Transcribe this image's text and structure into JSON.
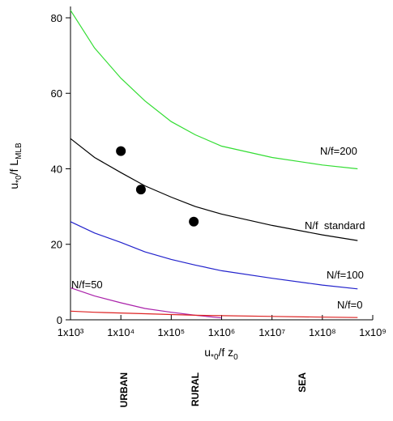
{
  "chart_data": {
    "type": "line",
    "x_log": true,
    "xlim": [
      1000,
      1000000000
    ],
    "ylim": [
      0,
      83
    ],
    "xticks": [
      {
        "value": 1000,
        "label": "1x10³"
      },
      {
        "value": 10000,
        "label": "1x10⁴"
      },
      {
        "value": 100000,
        "label": "1x10⁵"
      },
      {
        "value": 1000000,
        "label": "1x10⁶"
      },
      {
        "value": 10000000,
        "label": "1x10⁷"
      },
      {
        "value": 100000000,
        "label": "1x10⁸"
      },
      {
        "value": 1000000000,
        "label": "1x10⁹"
      }
    ],
    "yticks": [
      0,
      20,
      40,
      60,
      80
    ],
    "xlabel": [
      "u",
      "*0",
      "/f z",
      "0"
    ],
    "ylabel": [
      "u",
      "*0",
      "/f L",
      "MLB"
    ],
    "x": [
      1000,
      3000,
      10000,
      30000,
      100000,
      300000,
      1000000,
      10000000,
      100000000,
      500000000
    ],
    "series": [
      {
        "name": "N/f=200",
        "color": "#33dd33",
        "values": [
          82,
          72,
          64,
          58,
          52.5,
          49,
          46,
          43,
          41,
          40
        ]
      },
      {
        "name": "N/f  standard",
        "color": "#000000",
        "values": [
          48,
          43,
          39,
          35.5,
          32.5,
          30,
          28,
          25,
          22.5,
          21
        ]
      },
      {
        "name": "N/f=100",
        "color": "#2222cc",
        "values": [
          26,
          23,
          20.5,
          18,
          16,
          14.5,
          13,
          11,
          9.2,
          8.2
        ]
      },
      {
        "name": "N/f=50",
        "color": "#aa22aa",
        "values": [
          8.5,
          6.3,
          4.5,
          3,
          2,
          1.2,
          0.5,
          null,
          null,
          null
        ]
      },
      {
        "name": "N/f=0",
        "color": "#dd2222",
        "values": [
          2.3,
          2,
          1.8,
          1.6,
          1.4,
          1.2,
          1.1,
          0.9,
          0.7,
          0.6
        ]
      }
    ],
    "points": {
      "color": "#000000",
      "x": [
        10000,
        25000,
        280000
      ],
      "y": [
        44.7,
        34.5,
        26
      ]
    },
    "zones": [
      "URBAN",
      "RURAL",
      "SEA"
    ]
  }
}
